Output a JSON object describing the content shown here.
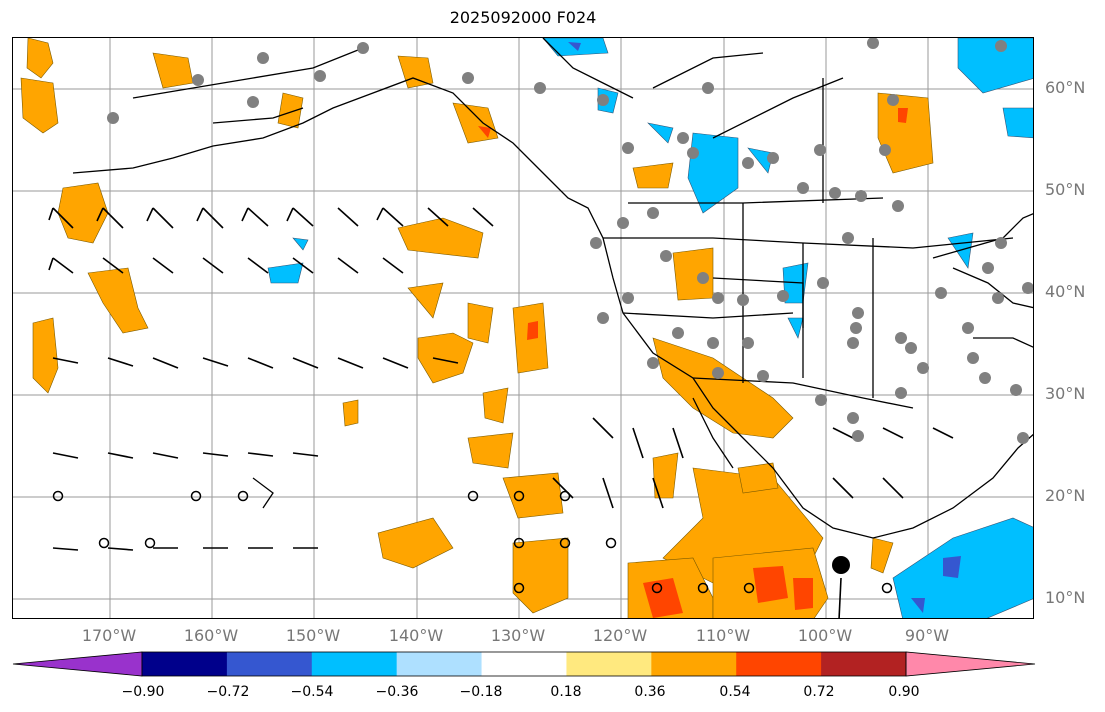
{
  "title": "2025092000 F024",
  "map": {
    "lat_labels": [
      "60°N",
      "50°N",
      "40°N",
      "30°N",
      "20°N",
      "10°N"
    ],
    "lon_labels": [
      "170°W",
      "160°W",
      "150°W",
      "140°W",
      "130°W",
      "120°W",
      "110°W",
      "100°W",
      "90°W"
    ],
    "lon_range": [
      -180,
      -80
    ],
    "lat_range": [
      8,
      65
    ],
    "grid": true
  },
  "colorbar": {
    "tick_labels": [
      "−0.90",
      "−0.72",
      "−0.54",
      "−0.36",
      "−0.18",
      "0.18",
      "0.36",
      "0.54",
      "0.72",
      "0.90"
    ],
    "colors": [
      "#9932cc",
      "#00008b",
      "#3557d0",
      "#00bfff",
      "#aee0ff",
      "#ffffff",
      "#ffe97f",
      "#ffa500",
      "#ff4500",
      "#b22222",
      "#ff88aa"
    ],
    "extend": "both"
  },
  "colors": {
    "positive_fill": "#ffa500",
    "negative_fill": "#00bfff",
    "station": "#808080"
  }
}
